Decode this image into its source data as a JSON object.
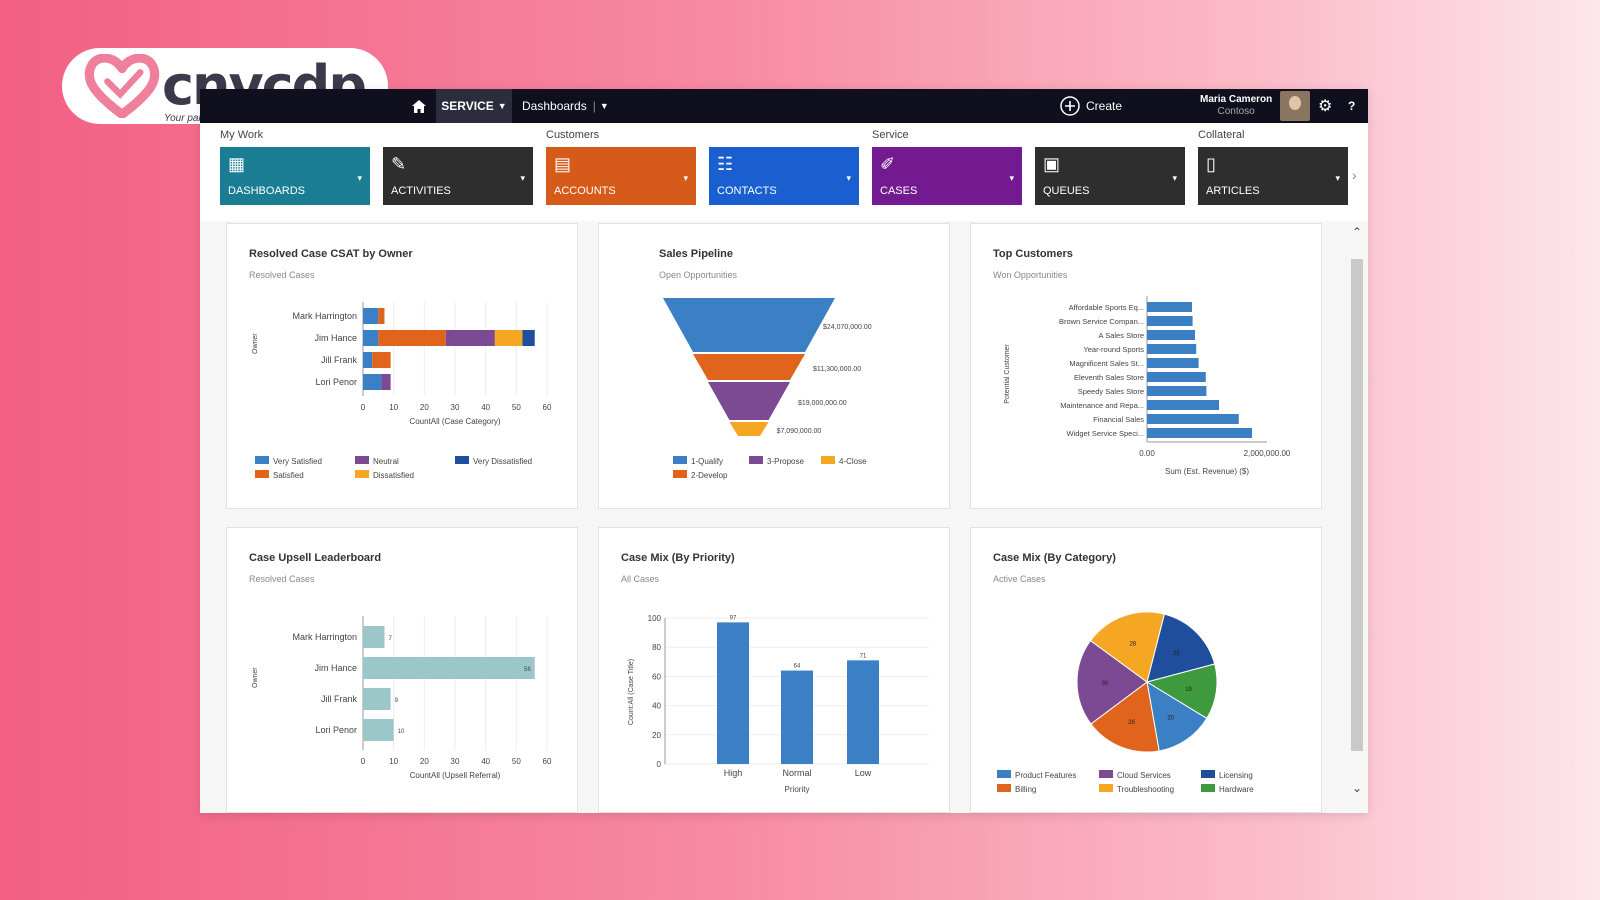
{
  "logo": {
    "name": "cnvcdp",
    "tagline": "Your partner in growth",
    "heart_color": "#ef7f9b"
  },
  "nav": {
    "service": "SERVICE",
    "dashboards": "Dashboards",
    "create": "Create",
    "user_name": "Maria Cameron",
    "user_org": "Contoso"
  },
  "ribbon": {
    "groups": [
      {
        "label": "My Work"
      },
      {
        "label": "Customers"
      },
      {
        "label": "Service"
      },
      {
        "label": "Collateral"
      }
    ],
    "tiles": [
      {
        "label": "DASHBOARDS",
        "color": "#1b7d93",
        "icon": "dashboard-icon"
      },
      {
        "label": "ACTIVITIES",
        "color": "#2e2e2e",
        "icon": "activities-icon"
      },
      {
        "label": "ACCOUNTS",
        "color": "#d65b1a",
        "icon": "accounts-icon"
      },
      {
        "label": "CONTACTS",
        "color": "#1a5fd0",
        "icon": "contacts-icon"
      },
      {
        "label": "CASES",
        "color": "#741a91",
        "icon": "cases-icon"
      },
      {
        "label": "QUEUES",
        "color": "#2e2e2e",
        "icon": "queues-icon"
      },
      {
        "label": "ARTICLES",
        "color": "#2e2e2e",
        "icon": "articles-icon"
      }
    ]
  },
  "chart_data": [
    {
      "type": "bar",
      "orientation": "horizontal",
      "stacked": true,
      "title": "Resolved Case CSAT by Owner",
      "subtitle": "Resolved Cases",
      "ylabel": "Owner",
      "xlabel": "CountAll (Case Category)",
      "categories": [
        "Mark Harrington",
        "Jim Hance",
        "Jill Frank",
        "Lori Penor"
      ],
      "series": [
        {
          "name": "Very Satisfied",
          "color": "#3b7fc4",
          "values": [
            5,
            5,
            3,
            6
          ]
        },
        {
          "name": "Satisfied",
          "color": "#e0641c",
          "values": [
            2,
            22,
            6,
            0
          ]
        },
        {
          "name": "Neutral",
          "color": "#7b4a93",
          "values": [
            0,
            16,
            0,
            3
          ]
        },
        {
          "name": "Dissatisfied",
          "color": "#f5a623",
          "values": [
            0,
            9,
            0,
            0
          ]
        },
        {
          "name": "Very Dissatisfied",
          "color": "#1f4e9c",
          "values": [
            0,
            4,
            0,
            0
          ]
        }
      ],
      "xlim": [
        0,
        60
      ],
      "xticks": [
        "0",
        "10",
        "20",
        "30",
        "40",
        "50",
        "60"
      ]
    },
    {
      "type": "funnel",
      "title": "Sales Pipeline",
      "subtitle": "Open Opportunities",
      "categories": [
        "1-Qualify",
        "2-Develop",
        "3-Propose",
        "4-Close"
      ],
      "colors": [
        "#3b7fc4",
        "#e0641c",
        "#7b4a93",
        "#f5a623"
      ],
      "values": [
        24070000,
        11300000,
        19000000,
        7090000
      ],
      "value_labels": [
        "$24,070,000.00",
        "$11,300,000.00",
        "$19,000,000.00",
        "$7,090,000.00"
      ]
    },
    {
      "type": "bar",
      "orientation": "horizontal",
      "title": "Top Customers",
      "subtitle": "Won Opportunities",
      "ylabel": "Potential Customer",
      "xlabel": "Sum (Est. Revenue) ($)",
      "categories": [
        "Affordable Sports Eq...",
        "Brown Service Compan...",
        "A Sales Store",
        "Year-round Sports",
        "Magnificent Sales St...",
        "Eleventh Sales Store",
        "Speedy Sales Store",
        "Maintenance and Repa...",
        "Financial Sales",
        "Widget Service Speci..."
      ],
      "values": [
        750000,
        760000,
        800000,
        820000,
        860000,
        980000,
        990000,
        1200000,
        1530000,
        1750000
      ],
      "color": "#3b7fc4",
      "xlim": [
        0,
        2000000
      ],
      "xticks": [
        "0.00",
        "2,000,000.00"
      ]
    },
    {
      "type": "bar",
      "orientation": "horizontal",
      "title": "Case Upsell Leaderboard",
      "subtitle": "Resolved Cases",
      "ylabel": "Owner",
      "xlabel": "CountAll (Upsell Referral)",
      "categories": [
        "Mark Harrington",
        "Jim Hance",
        "Jill Frank",
        "Lori Penor"
      ],
      "values": [
        7,
        56,
        9,
        10
      ],
      "color": "#9bc7c8",
      "xlim": [
        0,
        60
      ],
      "xticks": [
        "0",
        "10",
        "20",
        "30",
        "40",
        "50",
        "60"
      ]
    },
    {
      "type": "bar",
      "title": "Case Mix (By Priority)",
      "subtitle": "All Cases",
      "ylabel": "Count:All (Case Title)",
      "xlabel": "Priority",
      "categories": [
        "High",
        "Normal",
        "Low"
      ],
      "values": [
        97,
        64,
        71
      ],
      "color": "#3b7fc4",
      "ylim": [
        0,
        100
      ],
      "yticks": [
        "0",
        "20",
        "40",
        "60",
        "80",
        "100"
      ]
    },
    {
      "type": "pie",
      "title": "Case Mix (By Category)",
      "subtitle": "Active Cases",
      "slices": [
        {
          "name": "Licensing",
          "value": 25,
          "color": "#1f4e9c"
        },
        {
          "name": "Hardware",
          "value": 19,
          "color": "#3e9a3e"
        },
        {
          "name": "Product Features",
          "value": 20,
          "color": "#3b7fc4"
        },
        {
          "name": "Billing",
          "value": 26,
          "color": "#e0641c"
        },
        {
          "name": "Cloud Services",
          "value": 30,
          "color": "#7b4a93"
        },
        {
          "name": "Troubleshooting",
          "value": 28,
          "color": "#f5a623"
        }
      ],
      "legend_order": [
        "Product Features",
        "Cloud Services",
        "Licensing",
        "Billing",
        "Troubleshooting",
        "Hardware"
      ]
    }
  ]
}
